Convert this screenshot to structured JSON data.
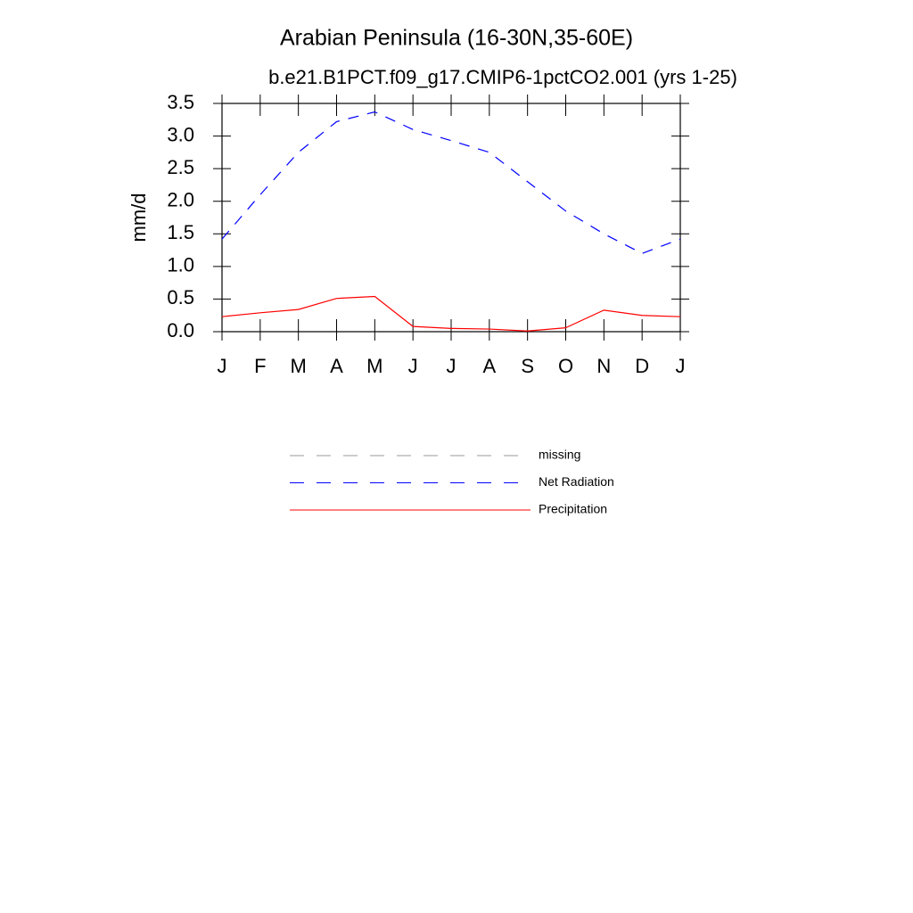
{
  "chart_data": {
    "type": "line",
    "title": "Arabian Peninsula (16-30N,35-60E)",
    "subtitle": "b.e21.B1PCT.f09_g17.CMIP6-1pctCO2.001 (yrs 1-25)",
    "y_label": "mm/d",
    "categories": [
      "J",
      "F",
      "M",
      "A",
      "M",
      "J",
      "J",
      "A",
      "S",
      "O",
      "N",
      "D",
      "J"
    ],
    "series": [
      {
        "name": "missing",
        "color": "#999999",
        "dashed": true,
        "values": [
          null,
          null,
          null,
          null,
          null,
          null,
          null,
          null,
          null,
          null,
          null,
          null,
          null
        ]
      },
      {
        "name": "Net Radiation",
        "color": "#0000ff",
        "dashed": true,
        "values": [
          1.42,
          2.1,
          2.75,
          3.22,
          3.37,
          3.1,
          2.93,
          2.75,
          2.3,
          1.85,
          1.5,
          1.2,
          1.42
        ]
      },
      {
        "name": "Precipitation",
        "color": "#ff0000",
        "dashed": false,
        "values": [
          0.23,
          0.29,
          0.34,
          0.51,
          0.54,
          0.08,
          0.05,
          0.04,
          0.01,
          0.06,
          0.33,
          0.25,
          0.23
        ]
      }
    ],
    "ylim": [
      0,
      3.5
    ],
    "yticks": [
      {
        "value": 0,
        "label": "0.0"
      },
      0.5,
      {
        "value": 1,
        "label": "1.0"
      },
      1.5,
      {
        "value": 2,
        "label": "2.0"
      },
      2.5,
      {
        "value": 3,
        "label": "3.0"
      },
      3.5
    ]
  }
}
